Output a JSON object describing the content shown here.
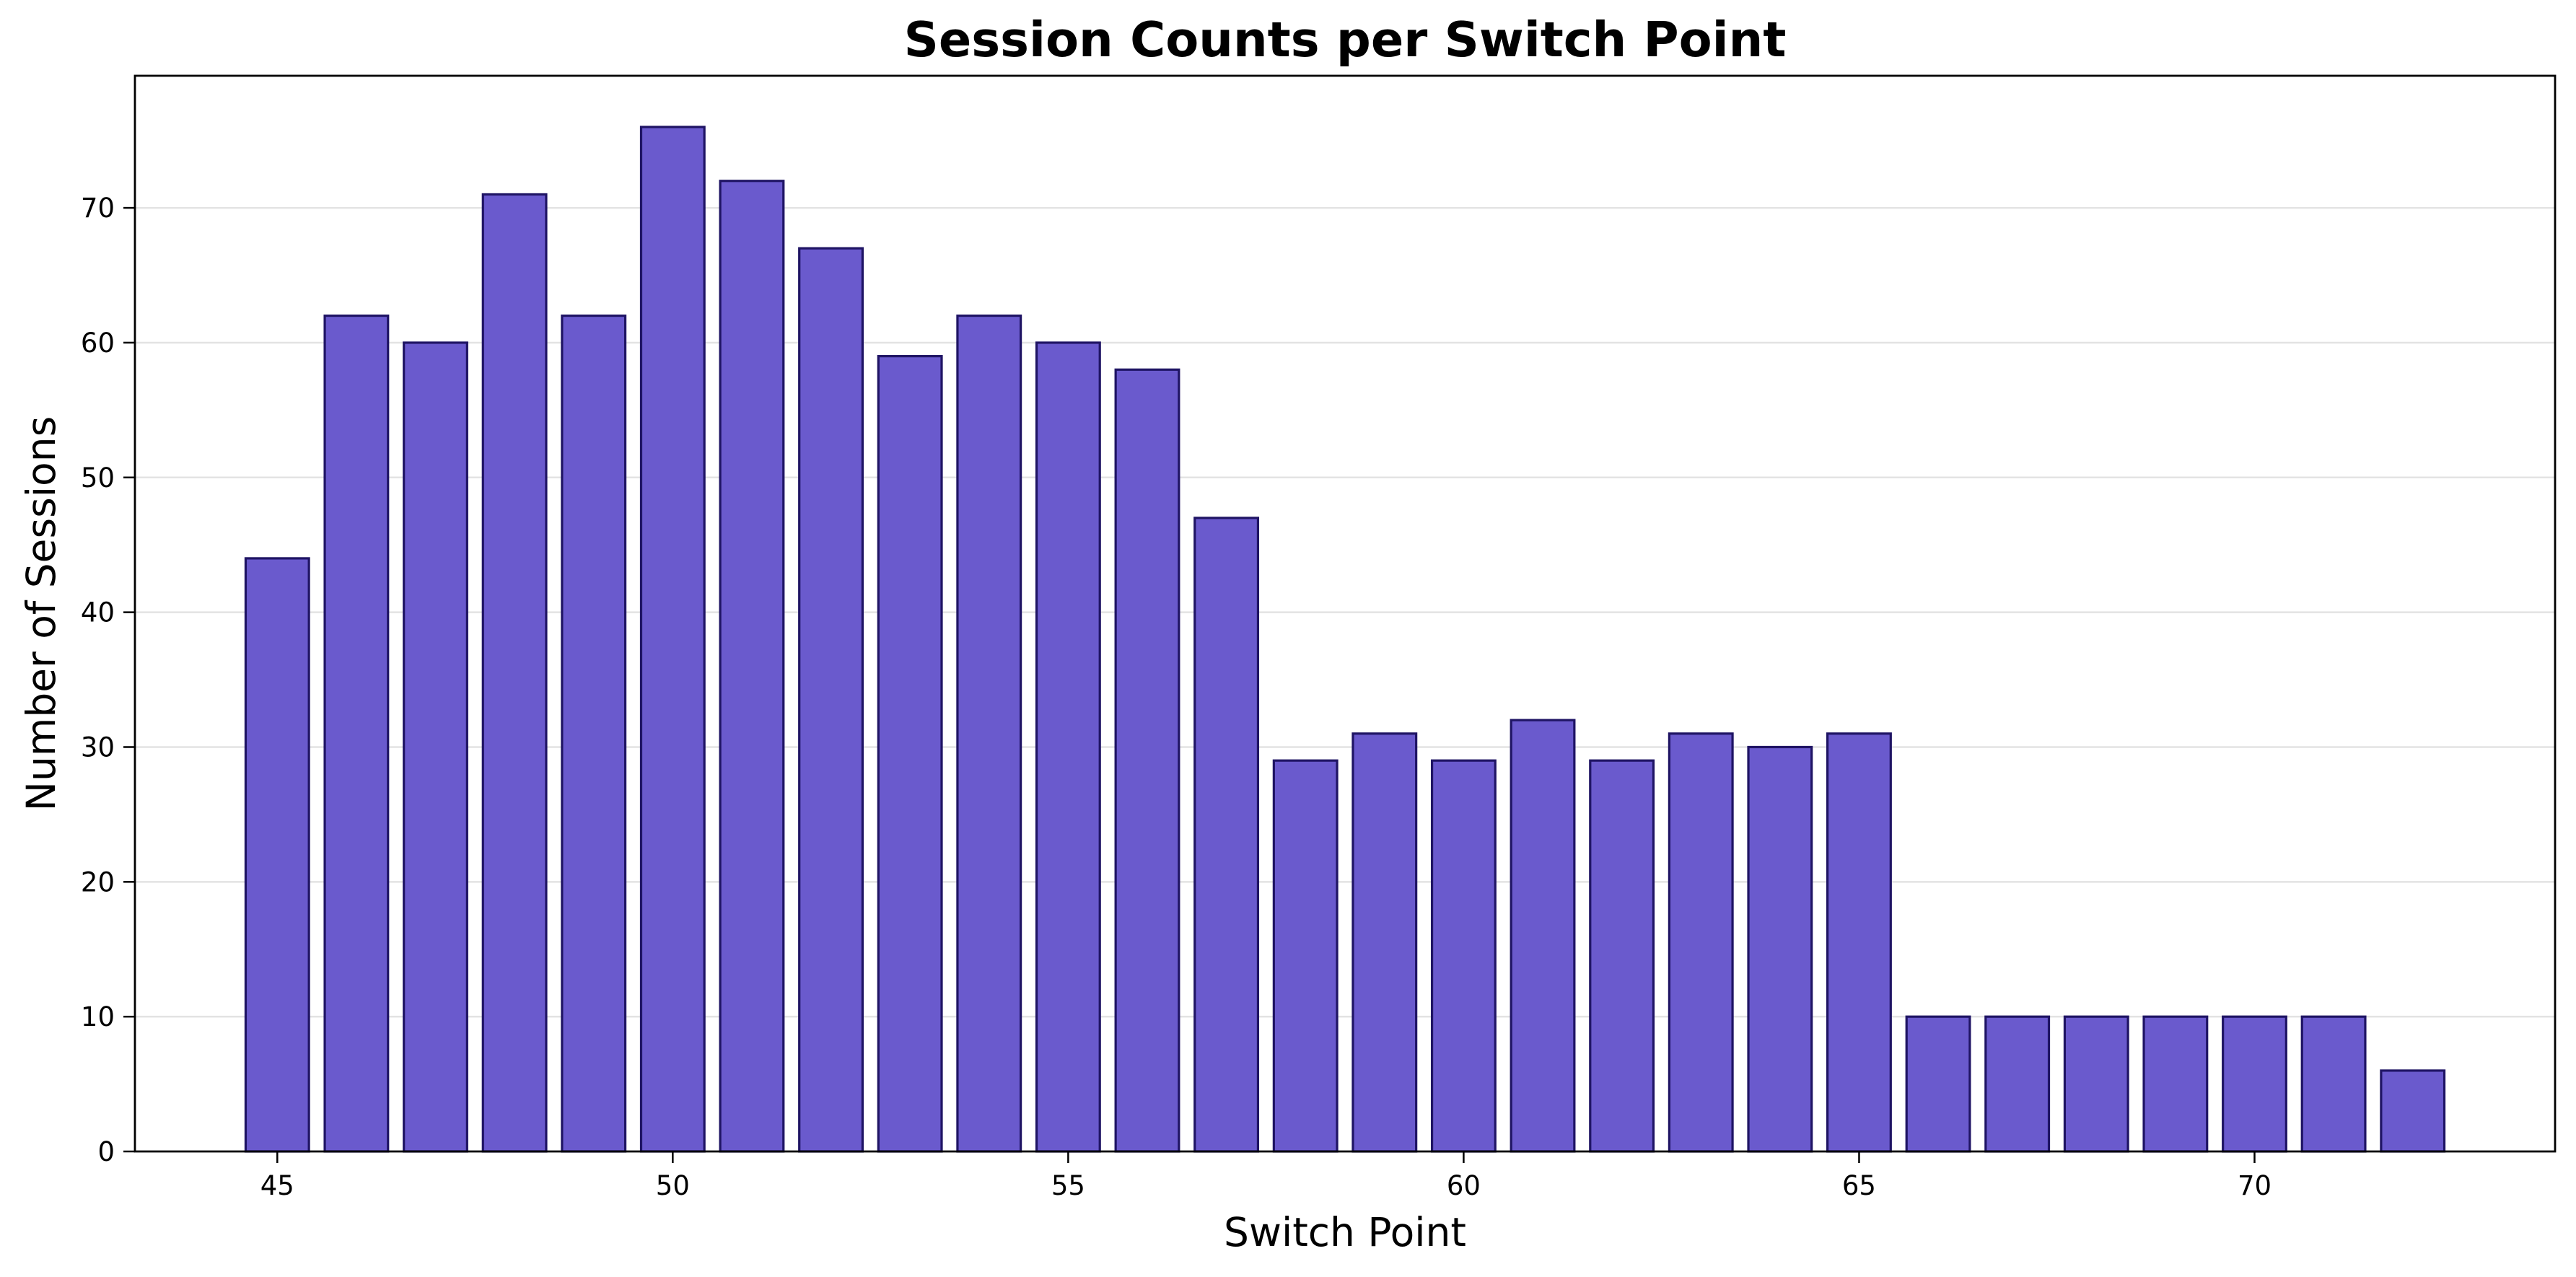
{
  "chart_data": {
    "type": "bar",
    "title": "Session Counts per Switch Point",
    "xlabel": "Switch Point",
    "ylabel": "Number of Sessions",
    "x": [
      45,
      46,
      47,
      48,
      49,
      50,
      51,
      52,
      53,
      54,
      55,
      56,
      57,
      58,
      59,
      60,
      61,
      62,
      63,
      64,
      65,
      66,
      67,
      68,
      69,
      70,
      71,
      72
    ],
    "values": [
      44,
      62,
      60,
      71,
      62,
      76,
      72,
      67,
      59,
      62,
      60,
      58,
      47,
      29,
      31,
      29,
      32,
      29,
      31,
      30,
      31,
      10,
      10,
      10,
      10,
      10,
      10,
      6
    ],
    "xlim": [
      43.2,
      73.8
    ],
    "ylim": [
      0,
      79.8
    ],
    "xticks": [
      45,
      50,
      55,
      60,
      65,
      70
    ],
    "yticks": [
      0,
      10,
      20,
      30,
      40,
      50,
      60,
      70
    ],
    "grid": "y-axis",
    "bar_color": "#6a5acd",
    "bar_edge_color": "#1f1464"
  }
}
